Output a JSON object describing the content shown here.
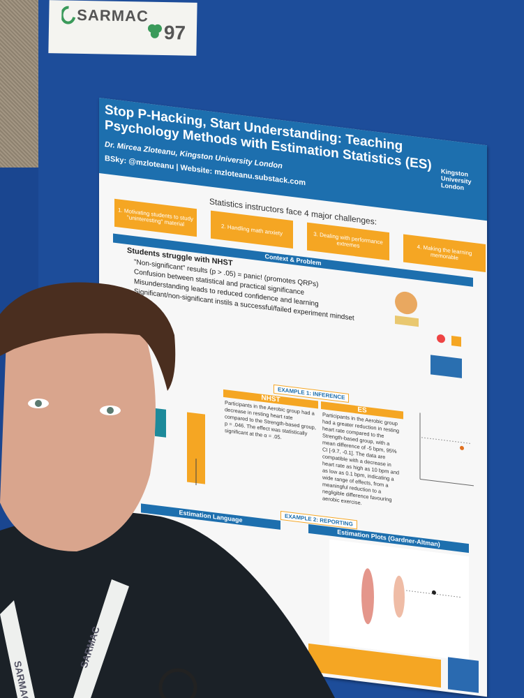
{
  "sign": {
    "name": "SARMAC",
    "number": "97"
  },
  "poster": {
    "title": "Stop P-Hacking, Start Understanding: Teaching Psychology Methods with Estimation Statistics (ES)",
    "author": "Dr. Mircea Zloteanu, Kingston University London",
    "contact": "BSky: @mzloteanu | Website: mzloteanu.substack.com",
    "logo": "Kingston University London",
    "challenges_heading": "Statistics instructors face 4 major challenges:",
    "challenges": [
      "1. Motivating students to study \"uninteresting\" material",
      "2. Handling math anxiety",
      "3. Dealing with performance extremes",
      "4. Making the learning memorable"
    ],
    "section1": "Context & Problem",
    "problem_heading": "Students struggle with NHST",
    "bullets": [
      "\"Non-significant\" results (p > .05) = panic! (promotes QRPs)",
      "Confusion between statistical and practical significance",
      "Misunderstanding leads to reduced confidence and learning",
      "Significant/non-significant instils a successful/failed experiment mindset"
    ],
    "example1": "EXAMPLE 1: INFERENCE",
    "nhst_heading": "NHST",
    "nhst_text": "Participants in the Aerobic group had a decrease in resting heart rate compared to the Strength-based group, p = .046. The effect was statistically significant at the α = .05.",
    "es_heading": "ES",
    "es_text": "Participants in the Aerobic group had a greater reduction in resting heart rate compared to the Strength-based group, with a mean difference of -5 bpm, 95% CI [-9.7, -0.1]. The data are compatible with a decrease in heart rate as high as 10 bpm and as low as 0.1 bpm, indicating a wide range of effects, from a meaningful reduction to a negligible difference favouring aerobic exercise.",
    "example2": "EXAMPLE 2: REPORTING",
    "section2": "Estimation Language",
    "section3": "Estimation Plots (Gardner-Altman)"
  },
  "lanyard": "SARMAC"
}
